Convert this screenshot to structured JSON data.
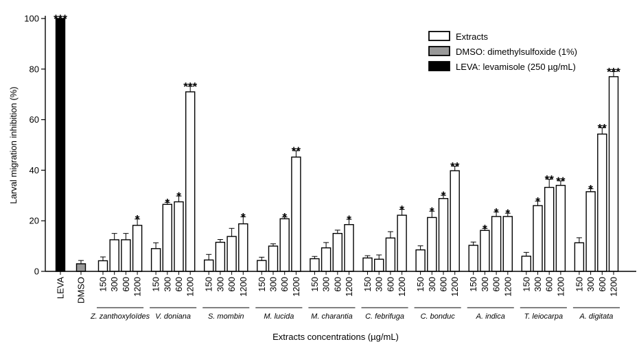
{
  "chart_data": {
    "type": "bar",
    "ylabel": "Larval migration inhibition  (%)",
    "xlabel": "Extracts concentrations (µg/mL)",
    "ylim": [
      0,
      100
    ],
    "yticks": [
      0,
      20,
      40,
      60,
      80,
      100
    ],
    "legend": {
      "placement": "top-right",
      "items": [
        {
          "label": "Extracts",
          "fill": "#ffffff"
        },
        {
          "label": "DMSO: dimethylsulfoxide (1%)",
          "fill": "#999999"
        },
        {
          "label": "LEVA: levamisole (250 µg/mL)",
          "fill": "#000000"
        }
      ]
    },
    "controls": [
      {
        "label": "LEVA",
        "value": 100,
        "err": 0,
        "sig": "***",
        "fill": "#000000"
      },
      {
        "label": "DMSO",
        "value": 3,
        "err": 1.3,
        "sig": "",
        "fill": "#999999"
      }
    ],
    "concentrations": [
      "150",
      "300",
      "600",
      "1200"
    ],
    "groups": [
      {
        "name": "Z. zanthoxyloïdes",
        "values": [
          4.2,
          12.5,
          12.5,
          18.2
        ],
        "errs": [
          1.5,
          2.5,
          2.5,
          2.5
        ],
        "sig": [
          "",
          "",
          "",
          "*"
        ]
      },
      {
        "name": "V. doniana",
        "values": [
          9,
          26.5,
          27.5,
          71
        ],
        "errs": [
          2.3,
          0.8,
          2.3,
          2.2
        ],
        "sig": [
          "",
          "*",
          "*",
          "***"
        ]
      },
      {
        "name": "S. mombin",
        "values": [
          4.5,
          11.5,
          13.8,
          18.8
        ],
        "errs": [
          2.2,
          1.1,
          3.2,
          2.8
        ],
        "sig": [
          "",
          "",
          "",
          "*"
        ]
      },
      {
        "name": "M. lucida",
        "values": [
          4.3,
          10,
          20.8,
          45.2
        ],
        "errs": [
          1.3,
          0.9,
          0.7,
          2.5
        ],
        "sig": [
          "",
          "",
          "*",
          "**"
        ]
      },
      {
        "name": "M. charantia",
        "values": [
          5,
          9.3,
          15,
          18.5
        ],
        "errs": [
          0.9,
          2.1,
          1.3,
          2.1
        ],
        "sig": [
          "",
          "",
          "",
          "*"
        ]
      },
      {
        "name": "C. febrifuga",
        "values": [
          5.3,
          4.8,
          13.2,
          22.2
        ],
        "errs": [
          0.9,
          1.7,
          2.5,
          2.3
        ],
        "sig": [
          "",
          "",
          "",
          "*"
        ]
      },
      {
        "name": "C. bonduc",
        "values": [
          8.5,
          21.3,
          28.8,
          39.8
        ],
        "errs": [
          1.6,
          2.5,
          1.3,
          1.8
        ],
        "sig": [
          "",
          "*",
          "*",
          "**"
        ]
      },
      {
        "name": "A. indica",
        "values": [
          10.3,
          16.2,
          21.7,
          21.7
        ],
        "errs": [
          1.3,
          0.8,
          1.8,
          1.3
        ],
        "sig": [
          "",
          "*",
          "*",
          "*"
        ]
      },
      {
        "name": "T. leiocarpa",
        "values": [
          6,
          26,
          33.2,
          34
        ],
        "errs": [
          1.5,
          1.8,
          3.2,
          1.8
        ],
        "sig": [
          "",
          "*",
          "**",
          "**"
        ]
      },
      {
        "name": "A. digitata",
        "values": [
          11.3,
          31.5,
          54.3,
          77
        ],
        "errs": [
          2,
          1.2,
          2.5,
          2
        ],
        "sig": [
          "",
          "*",
          "**",
          "***"
        ]
      }
    ]
  }
}
